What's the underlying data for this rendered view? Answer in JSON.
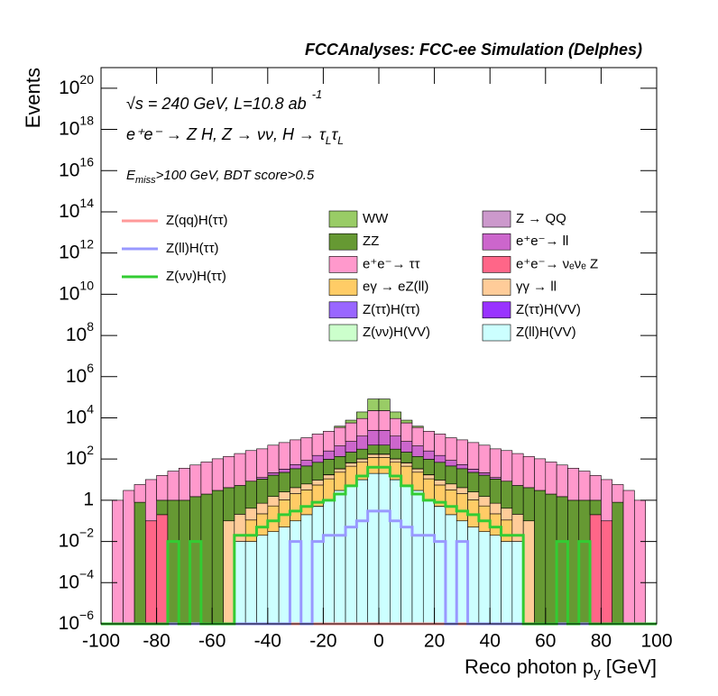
{
  "chart_data": {
    "type": "histogram",
    "title": "FCCAnalyses: FCC-ee Simulation (Delphes)",
    "energy_text": "√s = 240 GeV, L=10.8 ab",
    "energy_sup": "-1",
    "process": [
      "e⁺e⁻ → Z H, Z → νν, H → τ",
      "L",
      "τ",
      "L"
    ],
    "selection": [
      "E",
      "miss",
      ">100 GeV, BDT score>0.5"
    ],
    "ylabel": "Events",
    "xlabel": [
      "Reco photon p",
      "y",
      " [GeV]"
    ],
    "log_y": true,
    "xlim": [
      -100,
      100
    ],
    "ylim": [
      1e-06,
      1e+21
    ],
    "xticks": [
      -100,
      -80,
      -60,
      -40,
      -20,
      0,
      20,
      40,
      60,
      80,
      100
    ],
    "yticks": [
      {
        "value": 1e-06,
        "label": "10",
        "exponent": "−6"
      },
      {
        "value": 0.0001,
        "label": "10",
        "exponent": "−4"
      },
      {
        "value": 0.01,
        "label": "10",
        "exponent": "−2"
      },
      1,
      {
        "value": 100,
        "label": "10",
        "exponent": "2"
      },
      {
        "value": 10000,
        "label": "10",
        "exponent": "4"
      },
      {
        "value": 1000000.0,
        "label": "10",
        "exponent": "6"
      },
      {
        "value": 100000000.0,
        "label": "10",
        "exponent": "8"
      },
      {
        "value": 10000000000.0,
        "label": "10",
        "exponent": "10"
      },
      {
        "value": 1000000000000.0,
        "label": "10",
        "exponent": "12"
      },
      {
        "value": 100000000000000.0,
        "label": "10",
        "exponent": "14"
      },
      {
        "value": 1e+16,
        "label": "10",
        "exponent": "16"
      },
      {
        "value": 1e+18,
        "label": "10",
        "exponent": "18"
      },
      {
        "value": 1e+20,
        "label": "10",
        "exponent": "20"
      }
    ],
    "bins": [
      -100,
      -96,
      -92,
      -88,
      -84,
      -80,
      -76,
      -72,
      -68,
      -64,
      -60,
      -56,
      -52,
      -48,
      -44,
      -40,
      -36,
      -32,
      -28,
      -24,
      -20,
      -16,
      -12,
      -8,
      -4,
      0,
      4,
      8,
      12,
      16,
      20,
      24,
      28,
      32,
      36,
      40,
      44,
      48,
      52,
      56,
      60,
      64,
      68,
      72,
      76,
      80,
      84,
      88,
      92,
      96,
      100
    ],
    "series": [
      {
        "name": "Z(ll)H(VV)",
        "color": "#ccffff",
        "style": "stack",
        "values": [
          0,
          0,
          0,
          0,
          0,
          0,
          0,
          0,
          0,
          0,
          0,
          0,
          0.01,
          0.01,
          0.02,
          0.03,
          0.05,
          0.1,
          0.2,
          0.5,
          1,
          3,
          5,
          10,
          20,
          20,
          10,
          5,
          3,
          1,
          0.5,
          0.2,
          0.1,
          0.05,
          0.03,
          0.02,
          0.01,
          0.01,
          0,
          0,
          0,
          0,
          0,
          0,
          0,
          0,
          0,
          0,
          0,
          0
        ]
      },
      {
        "name": "Z(ττ)H(ττ)",
        "color": "#9966ff",
        "style": "stack",
        "values": [
          0,
          0,
          0,
          0,
          0,
          0,
          0,
          0,
          0,
          0,
          0,
          0,
          0,
          0,
          0,
          0,
          0,
          0,
          0,
          0.01,
          0,
          0,
          0,
          0.02,
          0.08,
          0.08,
          0.02,
          0,
          0,
          0,
          0.01,
          0,
          0,
          0,
          0,
          0,
          0,
          0,
          0,
          0,
          0,
          0,
          0,
          0,
          0,
          0,
          0,
          0,
          0,
          0
        ]
      },
      {
        "name": "Z(ττ)H(VV)",
        "color": "#9933ff",
        "style": "stack",
        "values": [
          0,
          0,
          0,
          0,
          0,
          0,
          0,
          0,
          0,
          0,
          0,
          0,
          0,
          0,
          0,
          0,
          0,
          0,
          0,
          0,
          0,
          0,
          0,
          0,
          0,
          0,
          0,
          0,
          0,
          0,
          0,
          0,
          0,
          0,
          0,
          0,
          0,
          0,
          0,
          0,
          0,
          0,
          0,
          0,
          0,
          0,
          0,
          0,
          0,
          0
        ]
      },
      {
        "name": "Z(νν)H(VV)",
        "color": "#ccffcc",
        "style": "stack",
        "values": [
          0,
          0,
          0,
          0,
          0,
          0,
          0,
          0,
          0,
          0,
          0,
          0,
          0,
          0,
          0,
          0,
          0,
          0,
          0,
          0,
          0,
          0,
          0,
          0,
          0,
          0,
          0,
          0,
          0,
          0,
          0,
          0,
          0,
          0,
          0,
          0,
          0,
          0,
          0,
          0,
          0,
          0,
          0,
          0,
          0,
          0,
          0,
          0,
          0,
          0
        ]
      },
      {
        "name": "eγ → eZ(ll)",
        "color": "#ffcc66",
        "style": "stack",
        "values": [
          0,
          0,
          0,
          0,
          0,
          0,
          0,
          0,
          0,
          0,
          0,
          0,
          0,
          0.1,
          0.2,
          0.5,
          1,
          2,
          3,
          5,
          10,
          20,
          40,
          60,
          100,
          100,
          60,
          40,
          20,
          10,
          5,
          3,
          2,
          1,
          0.5,
          0.2,
          0.1,
          0,
          0,
          0,
          0,
          0,
          0,
          0,
          0,
          0,
          0,
          0,
          0,
          0
        ]
      },
      {
        "name": "γγ → ll",
        "color": "#ffcc99",
        "style": "stack",
        "values": [
          0,
          0,
          0,
          0,
          0,
          0,
          0,
          0,
          0,
          0,
          0,
          0.1,
          0.2,
          0.3,
          0.5,
          1,
          1.5,
          2,
          3,
          4,
          6,
          10,
          20,
          30,
          50,
          50,
          30,
          20,
          10,
          6,
          4,
          3,
          2,
          1.5,
          1,
          0.5,
          0.3,
          0.2,
          0.1,
          0,
          0,
          0,
          0,
          0,
          0,
          0,
          0,
          0,
          0,
          0
        ]
      },
      {
        "name": "e⁺e⁻→ νₑνₑ Z",
        "color": "#ff6688",
        "style": "stack",
        "values": [
          0,
          0,
          0,
          0,
          0.1,
          0.2,
          0,
          0,
          0,
          0,
          0,
          0,
          0,
          0,
          0,
          0,
          0,
          0,
          0,
          0,
          0.5,
          1,
          2,
          3,
          5,
          5,
          3,
          2,
          1,
          0.5,
          0,
          0,
          0,
          0,
          0,
          0,
          0,
          0,
          0,
          0,
          0,
          0,
          0,
          0,
          0.2,
          0.1,
          0,
          0,
          0,
          0
        ]
      },
      {
        "name": "ZZ",
        "color": "#669933",
        "style": "stack",
        "values": [
          0,
          0,
          0,
          0.8,
          0,
          0.8,
          1,
          1,
          1.5,
          2,
          3,
          4,
          5,
          8,
          10,
          15,
          20,
          30,
          40,
          60,
          80,
          100,
          150,
          200,
          300,
          300,
          200,
          150,
          100,
          80,
          60,
          40,
          30,
          20,
          15,
          10,
          8,
          5,
          4,
          3,
          2,
          1.5,
          1,
          1,
          0.8,
          0,
          0.8,
          0,
          0,
          0
        ]
      },
      {
        "name": "e⁺e⁻→ ll",
        "color": "#cc66cc",
        "style": "stack",
        "values": [
          0,
          0,
          0,
          0,
          0,
          0,
          0,
          0,
          0,
          0,
          0,
          0,
          0,
          0,
          2,
          5,
          10,
          20,
          40,
          80,
          150,
          300,
          500,
          1000,
          2000,
          2000,
          1000,
          500,
          300,
          150,
          80,
          40,
          20,
          10,
          5,
          2,
          0,
          0,
          0,
          0,
          0,
          0,
          0,
          0,
          0,
          0,
          0,
          0,
          0,
          0
        ]
      },
      {
        "name": "Z → QQ",
        "color": "#cc99cc",
        "style": "stack",
        "values": [
          0,
          0,
          0,
          0,
          0,
          0,
          0,
          0,
          0,
          0,
          0,
          0,
          0,
          0,
          0,
          0,
          0,
          0,
          0,
          0,
          0,
          0,
          0,
          0,
          0,
          0,
          0,
          0,
          0,
          0,
          0,
          0,
          0,
          0,
          0,
          0,
          0,
          0,
          0,
          0,
          0,
          0,
          0,
          0,
          0,
          0,
          0,
          0,
          0,
          0
        ]
      },
      {
        "name": "e⁺e⁻→ ττ",
        "color": "#ff99cc",
        "style": "stack",
        "values": [
          0,
          1,
          3,
          5,
          10,
          15,
          25,
          35,
          50,
          70,
          100,
          130,
          180,
          250,
          300,
          450,
          600,
          800,
          1000,
          1500,
          2000,
          3000,
          5000,
          8000,
          20000,
          20000,
          8000,
          5000,
          3000,
          2000,
          1500,
          1000,
          800,
          600,
          450,
          300,
          250,
          180,
          130,
          100,
          70,
          50,
          35,
          25,
          15,
          10,
          5,
          3,
          1,
          0
        ]
      },
      {
        "name": "WW",
        "color": "#99cc66",
        "style": "stack",
        "values": [
          0,
          0,
          0,
          0,
          0,
          0,
          0,
          0,
          0,
          0,
          0,
          0,
          0,
          0,
          0,
          0,
          0,
          0,
          0,
          0,
          0,
          500,
          2000,
          10000,
          60000,
          60000,
          10000,
          2000,
          500,
          0,
          0,
          0,
          0,
          0,
          0,
          0,
          0,
          0,
          0,
          0,
          0,
          0,
          0,
          0,
          0,
          0,
          0,
          0,
          0,
          0
        ]
      },
      {
        "name": "Z(qq)H(ττ)",
        "color": "#ff9999",
        "style": "line",
        "values": [
          0,
          0,
          0,
          0,
          0,
          0,
          0,
          0,
          0,
          0,
          0,
          0,
          0,
          0,
          0,
          0,
          0,
          0,
          0,
          0,
          0,
          0,
          0,
          0,
          0,
          0,
          0,
          0,
          0,
          0,
          0,
          0,
          0,
          0,
          0,
          0,
          0,
          0,
          0,
          0,
          0,
          0,
          0,
          0,
          0,
          0,
          0,
          0,
          0,
          0
        ]
      },
      {
        "name": "Z(ll)H(ττ)",
        "color": "#9999ff",
        "style": "line",
        "values": [
          0,
          0,
          0,
          0,
          0,
          0,
          0,
          0,
          0,
          0,
          0,
          0,
          0,
          0,
          0,
          0,
          0,
          0.01,
          0,
          0.01,
          0.02,
          0.02,
          0.05,
          0.1,
          0.3,
          0.3,
          0.1,
          0.05,
          0.02,
          0.02,
          0.01,
          0,
          0.01,
          0,
          0,
          0,
          0,
          0,
          0,
          0,
          0,
          0,
          0,
          0,
          0,
          0,
          0,
          0,
          0,
          0
        ]
      },
      {
        "name": "Z(νν)H(ττ)",
        "color": "#33cc33",
        "style": "line",
        "values": [
          0,
          0,
          0,
          0,
          0,
          0,
          0.01,
          0,
          0.01,
          0,
          0,
          0,
          0.02,
          0.02,
          0.05,
          0.1,
          0.2,
          0.3,
          0.5,
          0.8,
          1,
          2,
          5,
          15,
          40,
          40,
          15,
          5,
          2,
          1,
          0.8,
          0.5,
          0.3,
          0.2,
          0.1,
          0.05,
          0.02,
          0.02,
          0,
          0,
          0,
          0.01,
          0,
          0.01,
          0,
          0,
          0,
          0,
          0,
          0
        ]
      }
    ]
  }
}
